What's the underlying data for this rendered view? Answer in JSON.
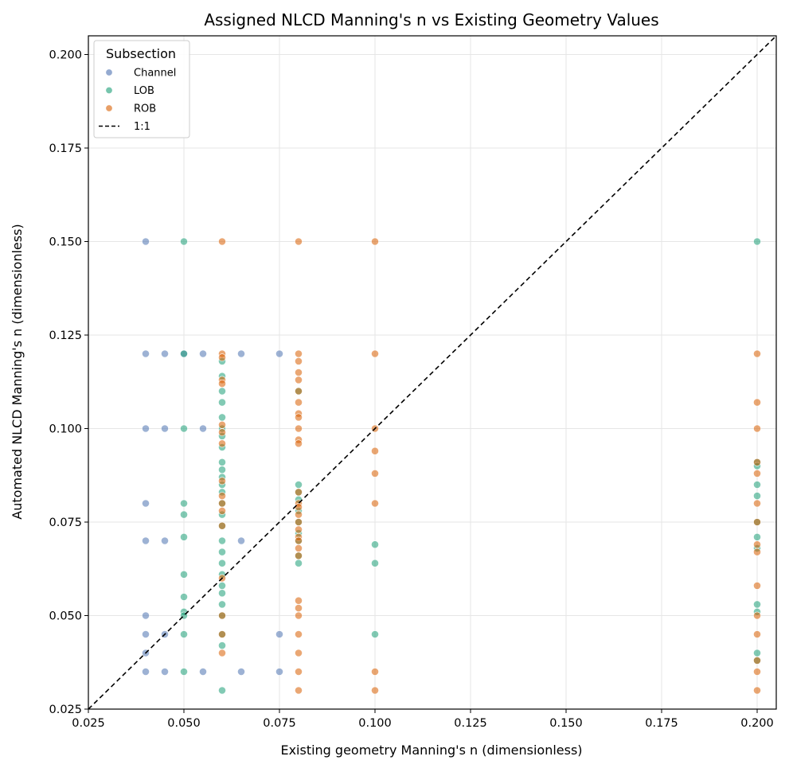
{
  "chart_data": {
    "type": "scatter",
    "title": "Assigned NLCD Manning's n vs Existing Geometry Values",
    "xlabel": "Existing geometry Manning's n (dimensionless)",
    "ylabel": "Automated NLCD Manning's n (dimensionless)",
    "xlim": [
      0.025,
      0.205
    ],
    "ylim": [
      0.025,
      0.205
    ],
    "xticks": [
      "0.025",
      "0.050",
      "0.075",
      "0.100",
      "0.125",
      "0.150",
      "0.175",
      "0.200"
    ],
    "yticks": [
      "0.025",
      "0.050",
      "0.075",
      "0.100",
      "0.125",
      "0.150",
      "0.175",
      "0.200"
    ],
    "grid": true,
    "legend": {
      "title": "Subsection",
      "position": "top-left",
      "entries": [
        "Channel",
        "LOB",
        "ROB",
        "1:1"
      ]
    },
    "reference_line": {
      "name": "1:1",
      "from": [
        0.025,
        0.025
      ],
      "to": [
        0.205,
        0.205
      ],
      "style": "dashed",
      "color": "#000000"
    },
    "series": [
      {
        "name": "Channel",
        "color": "#4c72b0",
        "points": [
          [
            0.04,
            0.15
          ],
          [
            0.04,
            0.12
          ],
          [
            0.04,
            0.1
          ],
          [
            0.04,
            0.08
          ],
          [
            0.04,
            0.07
          ],
          [
            0.04,
            0.05
          ],
          [
            0.04,
            0.045
          ],
          [
            0.04,
            0.04
          ],
          [
            0.04,
            0.035
          ],
          [
            0.045,
            0.12
          ],
          [
            0.045,
            0.1
          ],
          [
            0.045,
            0.07
          ],
          [
            0.045,
            0.045
          ],
          [
            0.045,
            0.035
          ],
          [
            0.05,
            0.12
          ],
          [
            0.055,
            0.12
          ],
          [
            0.055,
            0.1
          ],
          [
            0.055,
            0.035
          ],
          [
            0.065,
            0.12
          ],
          [
            0.065,
            0.07
          ],
          [
            0.065,
            0.035
          ],
          [
            0.075,
            0.12
          ],
          [
            0.075,
            0.045
          ],
          [
            0.075,
            0.035
          ]
        ]
      },
      {
        "name": "LOB",
        "color": "#1b9e77",
        "points": [
          [
            0.05,
            0.15
          ],
          [
            0.05,
            0.12
          ],
          [
            0.05,
            0.1
          ],
          [
            0.05,
            0.08
          ],
          [
            0.05,
            0.077
          ],
          [
            0.05,
            0.071
          ],
          [
            0.05,
            0.061
          ],
          [
            0.05,
            0.055
          ],
          [
            0.05,
            0.051
          ],
          [
            0.05,
            0.05
          ],
          [
            0.05,
            0.045
          ],
          [
            0.05,
            0.035
          ],
          [
            0.06,
            0.118
          ],
          [
            0.06,
            0.114
          ],
          [
            0.06,
            0.11
          ],
          [
            0.06,
            0.107
          ],
          [
            0.06,
            0.103
          ],
          [
            0.06,
            0.1
          ],
          [
            0.06,
            0.098
          ],
          [
            0.06,
            0.095
          ],
          [
            0.06,
            0.091
          ],
          [
            0.06,
            0.089
          ],
          [
            0.06,
            0.087
          ],
          [
            0.06,
            0.085
          ],
          [
            0.06,
            0.083
          ],
          [
            0.06,
            0.08
          ],
          [
            0.06,
            0.077
          ],
          [
            0.06,
            0.074
          ],
          [
            0.06,
            0.07
          ],
          [
            0.06,
            0.067
          ],
          [
            0.06,
            0.064
          ],
          [
            0.06,
            0.061
          ],
          [
            0.06,
            0.058
          ],
          [
            0.06,
            0.056
          ],
          [
            0.06,
            0.053
          ],
          [
            0.06,
            0.05
          ],
          [
            0.06,
            0.045
          ],
          [
            0.06,
            0.042
          ],
          [
            0.06,
            0.03
          ],
          [
            0.08,
            0.11
          ],
          [
            0.08,
            0.085
          ],
          [
            0.08,
            0.083
          ],
          [
            0.08,
            0.081
          ],
          [
            0.08,
            0.078
          ],
          [
            0.08,
            0.075
          ],
          [
            0.08,
            0.072
          ],
          [
            0.08,
            0.07
          ],
          [
            0.08,
            0.066
          ],
          [
            0.08,
            0.064
          ],
          [
            0.1,
            0.069
          ],
          [
            0.1,
            0.064
          ],
          [
            0.1,
            0.045
          ],
          [
            0.2,
            0.15
          ],
          [
            0.2,
            0.091
          ],
          [
            0.2,
            0.09
          ],
          [
            0.2,
            0.085
          ],
          [
            0.2,
            0.082
          ],
          [
            0.2,
            0.075
          ],
          [
            0.2,
            0.071
          ],
          [
            0.2,
            0.068
          ],
          [
            0.2,
            0.053
          ],
          [
            0.2,
            0.051
          ],
          [
            0.2,
            0.04
          ],
          [
            0.2,
            0.038
          ]
        ]
      },
      {
        "name": "ROB",
        "color": "#d95f02",
        "points": [
          [
            0.06,
            0.15
          ],
          [
            0.06,
            0.12
          ],
          [
            0.06,
            0.119
          ],
          [
            0.06,
            0.113
          ],
          [
            0.06,
            0.112
          ],
          [
            0.06,
            0.101
          ],
          [
            0.06,
            0.099
          ],
          [
            0.06,
            0.096
          ],
          [
            0.06,
            0.086
          ],
          [
            0.06,
            0.082
          ],
          [
            0.06,
            0.08
          ],
          [
            0.06,
            0.078
          ],
          [
            0.06,
            0.074
          ],
          [
            0.06,
            0.06
          ],
          [
            0.06,
            0.05
          ],
          [
            0.06,
            0.045
          ],
          [
            0.06,
            0.04
          ],
          [
            0.08,
            0.15
          ],
          [
            0.08,
            0.12
          ],
          [
            0.08,
            0.118
          ],
          [
            0.08,
            0.115
          ],
          [
            0.08,
            0.113
          ],
          [
            0.08,
            0.11
          ],
          [
            0.08,
            0.107
          ],
          [
            0.08,
            0.104
          ],
          [
            0.08,
            0.103
          ],
          [
            0.08,
            0.1
          ],
          [
            0.08,
            0.097
          ],
          [
            0.08,
            0.096
          ],
          [
            0.08,
            0.083
          ],
          [
            0.08,
            0.08
          ],
          [
            0.08,
            0.079
          ],
          [
            0.08,
            0.077
          ],
          [
            0.08,
            0.075
          ],
          [
            0.08,
            0.073
          ],
          [
            0.08,
            0.071
          ],
          [
            0.08,
            0.07
          ],
          [
            0.08,
            0.068
          ],
          [
            0.08,
            0.066
          ],
          [
            0.08,
            0.054
          ],
          [
            0.08,
            0.052
          ],
          [
            0.08,
            0.05
          ],
          [
            0.08,
            0.045
          ],
          [
            0.08,
            0.04
          ],
          [
            0.08,
            0.035
          ],
          [
            0.08,
            0.03
          ],
          [
            0.1,
            0.15
          ],
          [
            0.1,
            0.12
          ],
          [
            0.1,
            0.1
          ],
          [
            0.1,
            0.094
          ],
          [
            0.1,
            0.088
          ],
          [
            0.1,
            0.08
          ],
          [
            0.1,
            0.035
          ],
          [
            0.1,
            0.03
          ],
          [
            0.2,
            0.12
          ],
          [
            0.2,
            0.107
          ],
          [
            0.2,
            0.1
          ],
          [
            0.2,
            0.091
          ],
          [
            0.2,
            0.088
          ],
          [
            0.2,
            0.08
          ],
          [
            0.2,
            0.075
          ],
          [
            0.2,
            0.069
          ],
          [
            0.2,
            0.067
          ],
          [
            0.2,
            0.058
          ],
          [
            0.2,
            0.05
          ],
          [
            0.2,
            0.045
          ],
          [
            0.2,
            0.038
          ],
          [
            0.2,
            0.035
          ],
          [
            0.2,
            0.03
          ]
        ]
      }
    ]
  }
}
